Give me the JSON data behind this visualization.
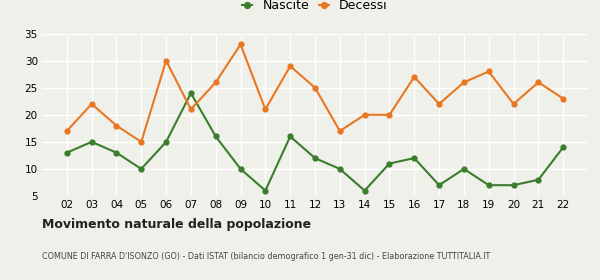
{
  "years": [
    "02",
    "03",
    "04",
    "05",
    "06",
    "07",
    "08",
    "09",
    "10",
    "11",
    "12",
    "13",
    "14",
    "15",
    "16",
    "17",
    "18",
    "19",
    "20",
    "21",
    "22"
  ],
  "nascite": [
    13,
    15,
    13,
    10,
    15,
    24,
    16,
    10,
    6,
    16,
    12,
    10,
    6,
    11,
    12,
    7,
    10,
    7,
    7,
    8,
    14
  ],
  "decessi": [
    17,
    22,
    18,
    15,
    30,
    21,
    26,
    33,
    21,
    29,
    25,
    17,
    20,
    20,
    27,
    22,
    26,
    28,
    22,
    26,
    23
  ],
  "nascite_color": "#3a7d2c",
  "decessi_color": "#e87722",
  "background_color": "#f0f0eb",
  "title": "Movimento naturale della popolazione",
  "subtitle": "COMUNE DI FARRA D'ISONZO (GO) - Dati ISTAT (bilancio demografico 1 gen-31 dic) - Elaborazione TUTTITALIA.IT",
  "legend_nascite": "Nascite",
  "legend_decessi": "Decessi",
  "ylim": [
    5,
    35
  ],
  "yticks": [
    5,
    10,
    15,
    20,
    25,
    30,
    35
  ]
}
